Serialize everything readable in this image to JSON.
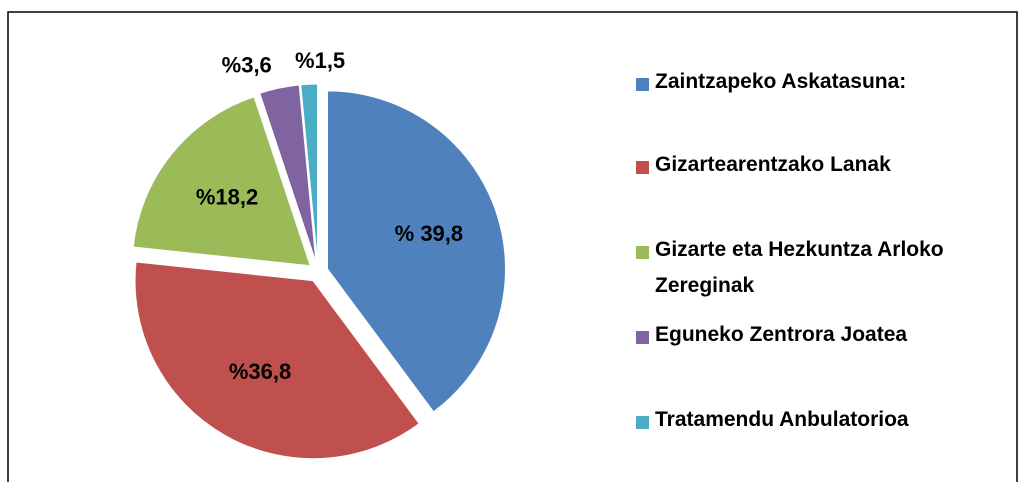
{
  "chart_data": {
    "type": "pie",
    "categories": [
      "Zaintzapeko Askatasuna:",
      "Gizartearentzako Lanak",
      "Gizarte eta Hezkuntza Arloko Zereginak",
      "Eguneko Zentrora Joatea",
      "Tratamendu Anbulatorioa"
    ],
    "values": [
      39.8,
      36.8,
      18.2,
      3.6,
      1.5
    ],
    "value_labels": [
      "% 39,8",
      "%36,8",
      "%18,2",
      "%3,6",
      "%1,5"
    ],
    "colors": [
      "#4f81bd",
      "#c0504d",
      "#9bbb59",
      "#8064a2",
      "#4bacc6"
    ],
    "legend": "right"
  }
}
